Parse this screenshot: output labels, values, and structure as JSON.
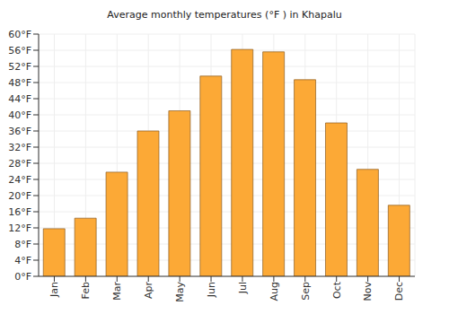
{
  "chart_data": {
    "type": "bar",
    "title": "Average monthly temperatures (°F ) in Khapalu",
    "categories": [
      "Jan",
      "Feb",
      "Mar",
      "Apr",
      "May",
      "Jun",
      "Jul",
      "Aug",
      "Sep",
      "Oct",
      "Nov",
      "Dec"
    ],
    "values": [
      11.8,
      14.4,
      25.8,
      36,
      41,
      49.6,
      56.2,
      55.6,
      48.7,
      38,
      26.5,
      17.6
    ],
    "color": "#fca936",
    "ylim": [
      0,
      60
    ],
    "yticks": [
      {
        "value": 0,
        "label": "0°F"
      },
      {
        "value": 4,
        "label": "4°F"
      },
      {
        "value": 8,
        "label": "8°F"
      },
      {
        "value": 12,
        "label": "12°F"
      },
      {
        "value": 16,
        "label": "16°F"
      },
      {
        "value": 20,
        "label": "20°F"
      },
      {
        "value": 24,
        "label": "24°F"
      },
      {
        "value": 28,
        "label": "28°F"
      },
      {
        "value": 32,
        "label": "32°F"
      },
      {
        "value": 36,
        "label": "36°F"
      },
      {
        "value": 40,
        "label": "40°F"
      },
      {
        "value": 44,
        "label": "44°F"
      },
      {
        "value": 48,
        "label": "48°F"
      },
      {
        "value": 52,
        "label": "52°F"
      },
      {
        "value": 56,
        "label": "56°F"
      },
      {
        "value": 60,
        "label": "60°F"
      }
    ],
    "grid": true
  }
}
